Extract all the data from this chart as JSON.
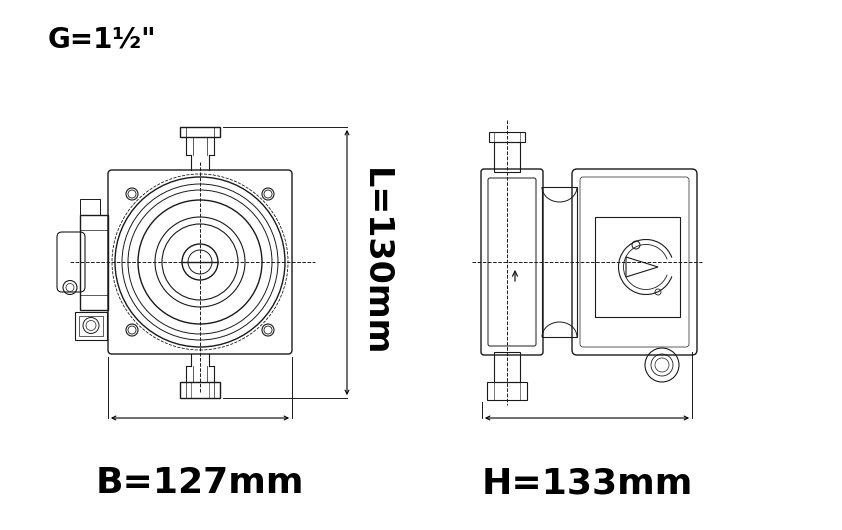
{
  "bg_color": "#ffffff",
  "line_color": "#1a1a1a",
  "dim_color": "#000000",
  "title_left": "G=1½\"",
  "label_L": "L=130mm",
  "label_B": "B=127mm",
  "label_H": "H=133mm",
  "font_size_g": 20,
  "font_size_dim": 26,
  "font_size_L": 24,
  "fig_width": 8.42,
  "fig_height": 5.3,
  "dpi": 100
}
